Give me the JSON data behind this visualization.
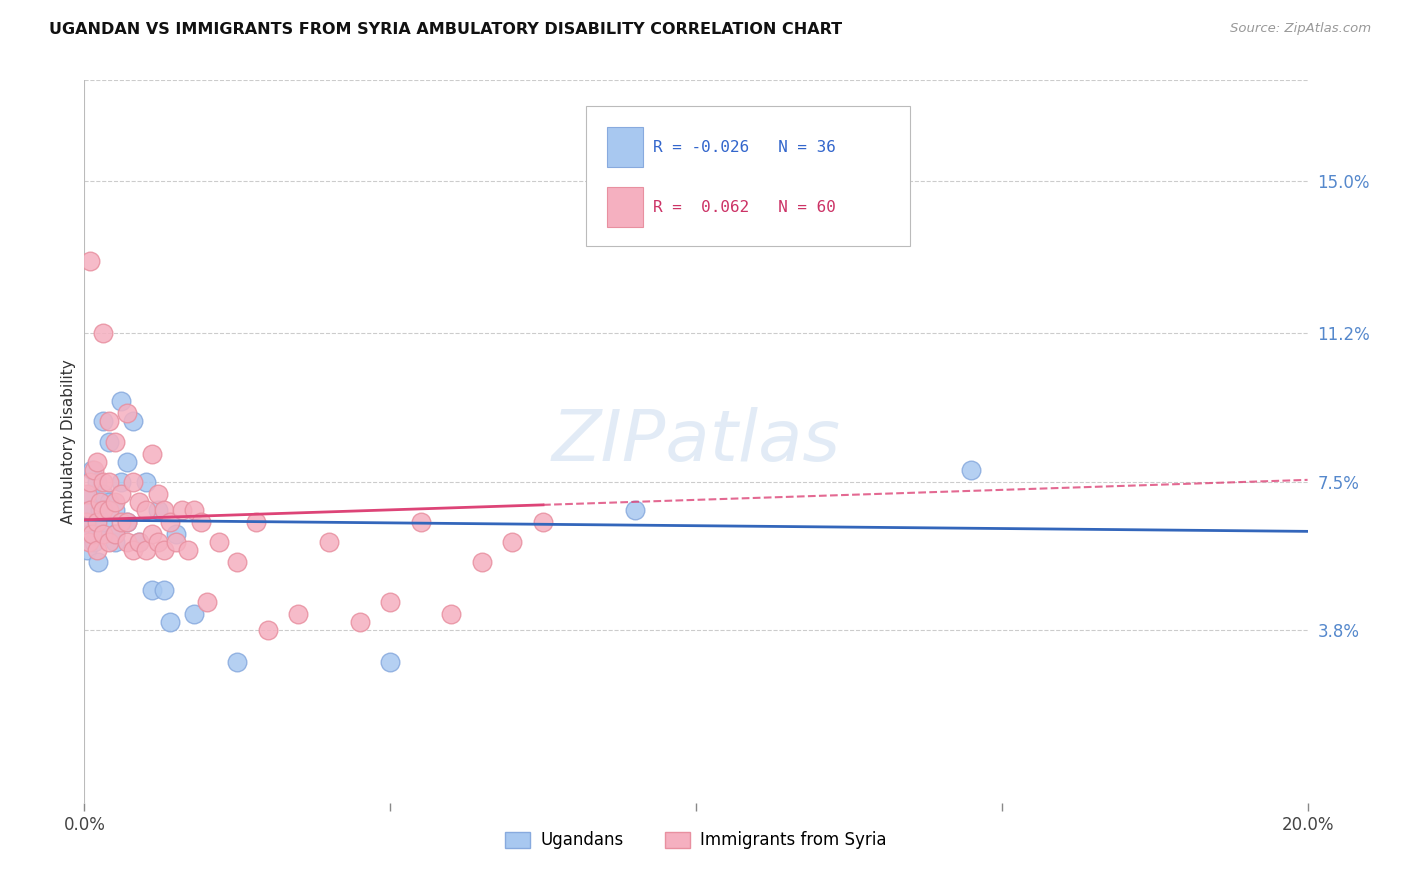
{
  "title": "UGANDAN VS IMMIGRANTS FROM SYRIA AMBULATORY DISABILITY CORRELATION CHART",
  "source": "Source: ZipAtlas.com",
  "ylabel": "Ambulatory Disability",
  "ytick_labels": [
    "15.0%",
    "11.2%",
    "7.5%",
    "3.8%"
  ],
  "ytick_values": [
    0.15,
    0.112,
    0.075,
    0.038
  ],
  "xlim": [
    0.0,
    0.2
  ],
  "ylim": [
    -0.005,
    0.175
  ],
  "blue_R": -0.026,
  "blue_N": 36,
  "pink_R": 0.062,
  "pink_N": 60,
  "blue_color": "#A8C8F0",
  "pink_color": "#F5B0C0",
  "blue_edge_color": "#88AADE",
  "pink_edge_color": "#E890A0",
  "blue_line_color": "#3366BB",
  "pink_line_color": "#DD4477",
  "legend_label_blue": "Ugandans",
  "legend_label_pink": "Immigrants from Syria",
  "watermark": "ZIPatlas",
  "blue_points_x": [
    0.0005,
    0.0005,
    0.0008,
    0.001,
    0.001,
    0.0012,
    0.0015,
    0.002,
    0.002,
    0.0022,
    0.0025,
    0.003,
    0.003,
    0.003,
    0.004,
    0.004,
    0.005,
    0.005,
    0.005,
    0.006,
    0.006,
    0.007,
    0.007,
    0.008,
    0.009,
    0.01,
    0.011,
    0.012,
    0.013,
    0.014,
    0.015,
    0.018,
    0.025,
    0.05,
    0.09,
    0.145
  ],
  "blue_points_y": [
    0.065,
    0.058,
    0.062,
    0.072,
    0.068,
    0.078,
    0.06,
    0.062,
    0.075,
    0.055,
    0.068,
    0.065,
    0.072,
    0.09,
    0.085,
    0.07,
    0.068,
    0.06,
    0.062,
    0.075,
    0.095,
    0.08,
    0.065,
    0.09,
    0.06,
    0.075,
    0.048,
    0.068,
    0.048,
    0.04,
    0.062,
    0.042,
    0.03,
    0.03,
    0.068,
    0.078
  ],
  "pink_points_x": [
    0.0003,
    0.0005,
    0.0007,
    0.001,
    0.001,
    0.001,
    0.0012,
    0.0015,
    0.002,
    0.002,
    0.002,
    0.0025,
    0.003,
    0.003,
    0.003,
    0.003,
    0.004,
    0.004,
    0.004,
    0.004,
    0.005,
    0.005,
    0.005,
    0.006,
    0.006,
    0.007,
    0.007,
    0.007,
    0.008,
    0.008,
    0.009,
    0.009,
    0.01,
    0.01,
    0.011,
    0.011,
    0.012,
    0.012,
    0.013,
    0.013,
    0.014,
    0.015,
    0.016,
    0.017,
    0.018,
    0.019,
    0.02,
    0.022,
    0.025,
    0.028,
    0.03,
    0.035,
    0.04,
    0.045,
    0.05,
    0.055,
    0.06,
    0.065,
    0.07,
    0.075
  ],
  "pink_points_y": [
    0.065,
    0.072,
    0.06,
    0.068,
    0.075,
    0.13,
    0.062,
    0.078,
    0.058,
    0.065,
    0.08,
    0.07,
    0.062,
    0.068,
    0.075,
    0.112,
    0.06,
    0.068,
    0.075,
    0.09,
    0.062,
    0.07,
    0.085,
    0.065,
    0.072,
    0.06,
    0.065,
    0.092,
    0.058,
    0.075,
    0.06,
    0.07,
    0.058,
    0.068,
    0.062,
    0.082,
    0.06,
    0.072,
    0.058,
    0.068,
    0.065,
    0.06,
    0.068,
    0.058,
    0.068,
    0.065,
    0.045,
    0.06,
    0.055,
    0.065,
    0.038,
    0.042,
    0.06,
    0.04,
    0.045,
    0.065,
    0.042,
    0.055,
    0.06,
    0.065
  ]
}
